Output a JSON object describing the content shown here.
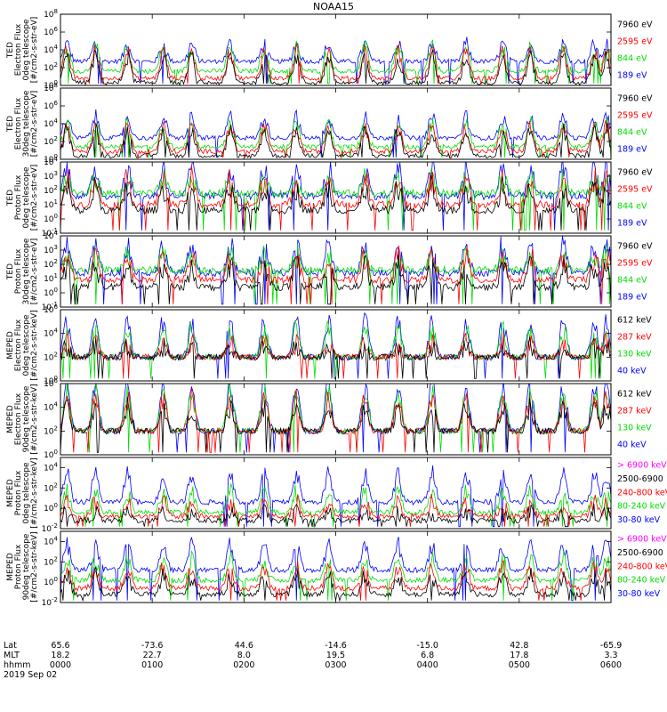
{
  "chart_data": {
    "type": "line",
    "title": "NOAA15",
    "colors": {
      "blue": "#0000ff",
      "red": "#ff0000",
      "green": "#00dd00",
      "black": "#000000",
      "magenta": "#ff00ff"
    },
    "panels": [
      {
        "ylabel": [
          "TED",
          "Electron Flux",
          "0deg telescope",
          "[#/cm2-s-str-eV]"
        ],
        "ytick_exp": [
          0,
          2,
          4,
          6,
          8
        ],
        "ylim": [
          0,
          8
        ],
        "legend": [
          {
            "text": "7960 eV",
            "color": "black"
          },
          {
            "text": "2595 eV",
            "color": "red"
          },
          {
            "text": "844 eV",
            "color": "green"
          },
          {
            "text": "189 eV",
            "color": "blue"
          }
        ],
        "series": [
          {
            "color": "blue",
            "base": 2.7,
            "peak": 4.6
          },
          {
            "color": "green",
            "base": 1.6,
            "peak": 4.2
          },
          {
            "color": "red",
            "base": 0.8,
            "peak": 3.8
          },
          {
            "color": "black",
            "base": 0.3,
            "peak": 3.2
          }
        ]
      },
      {
        "ylabel": [
          "TED",
          "Electron Flux",
          "30deg telescope",
          "[#/cm2-s-str-eV]"
        ],
        "ytick_exp": [
          0,
          2,
          4,
          6,
          8
        ],
        "ylim": [
          0,
          8
        ],
        "legend": [
          {
            "text": "7960 eV",
            "color": "black"
          },
          {
            "text": "2595 eV",
            "color": "red"
          },
          {
            "text": "844 eV",
            "color": "green"
          },
          {
            "text": "189 eV",
            "color": "blue"
          }
        ],
        "series": [
          {
            "color": "blue",
            "base": 2.4,
            "peak": 4.7
          },
          {
            "color": "green",
            "base": 1.4,
            "peak": 4.0
          },
          {
            "color": "red",
            "base": 0.9,
            "peak": 3.6
          },
          {
            "color": "black",
            "base": 0.4,
            "peak": 3.3
          }
        ]
      },
      {
        "ylabel": [
          "TED",
          "Proton Flux",
          "0deg telescope",
          "[#/cm2-s-str-eV]"
        ],
        "ytick_exp": [
          -1,
          0,
          1,
          2,
          3,
          4
        ],
        "ylim": [
          -1,
          4
        ],
        "legend": [
          {
            "text": "7960 eV",
            "color": "black"
          },
          {
            "text": "2595 eV",
            "color": "red"
          },
          {
            "text": "844 eV",
            "color": "green"
          },
          {
            "text": "189 eV",
            "color": "blue"
          }
        ],
        "series": [
          {
            "color": "blue",
            "base": 1.6,
            "peak": 3.6
          },
          {
            "color": "green",
            "base": 1.8,
            "peak": 2.8
          },
          {
            "color": "red",
            "base": 1.0,
            "peak": 2.8
          },
          {
            "color": "black",
            "base": 0.6,
            "peak": 2.2
          }
        ]
      },
      {
        "ylabel": [
          "TED",
          "Proton Flux",
          "30deg telescope",
          "[#/cm2-s-str-eV]"
        ],
        "ytick_exp": [
          -1,
          0,
          1,
          2,
          3,
          4
        ],
        "ylim": [
          -1,
          4
        ],
        "legend": [
          {
            "text": "7960 eV",
            "color": "black"
          },
          {
            "text": "2595 eV",
            "color": "red"
          },
          {
            "text": "844 eV",
            "color": "green"
          },
          {
            "text": "189 eV",
            "color": "blue"
          }
        ],
        "series": [
          {
            "color": "blue",
            "base": 1.4,
            "peak": 3.4
          },
          {
            "color": "green",
            "base": 1.6,
            "peak": 2.6
          },
          {
            "color": "red",
            "base": 0.9,
            "peak": 2.6
          },
          {
            "color": "black",
            "base": 0.4,
            "peak": 1.9
          }
        ]
      },
      {
        "ylabel": [
          "MEPED",
          "Electron Flux",
          "0deg telescope",
          "[#/cm2-s-str-keV]"
        ],
        "ytick_exp": [
          0,
          2,
          4,
          6
        ],
        "ylim": [
          0,
          6
        ],
        "legend": [
          {
            "text": "612 keV",
            "color": "black"
          },
          {
            "text": "287 keV",
            "color": "red"
          },
          {
            "text": "130 keV",
            "color": "green"
          },
          {
            "text": "40 keV",
            "color": "blue"
          }
        ],
        "series": [
          {
            "color": "blue",
            "base": 2.0,
            "peak": 5.0
          },
          {
            "color": "green",
            "base": 2.0,
            "peak": 4.3
          },
          {
            "color": "red",
            "base": 2.0,
            "peak": 3.2
          },
          {
            "color": "black",
            "base": 2.0,
            "peak": 2.8
          }
        ]
      },
      {
        "ylabel": [
          "MEPED",
          "Electron Flux",
          "90deg telescope",
          "[#/cm2-s-str-keV]"
        ],
        "ytick_exp": [
          0,
          2,
          4,
          6
        ],
        "ylim": [
          0,
          6
        ],
        "legend": [
          {
            "text": "612 keV",
            "color": "black"
          },
          {
            "text": "287 keV",
            "color": "red"
          },
          {
            "text": "130 keV",
            "color": "green"
          },
          {
            "text": "40 keV",
            "color": "blue"
          }
        ],
        "series": [
          {
            "color": "blue",
            "base": 2.0,
            "peak": 5.8
          },
          {
            "color": "green",
            "base": 2.0,
            "peak": 5.2
          },
          {
            "color": "red",
            "base": 2.0,
            "peak": 4.6
          },
          {
            "color": "black",
            "base": 2.0,
            "peak": 4.0
          }
        ]
      },
      {
        "ylabel": [
          "MEPED",
          "Proton Flux",
          "0deg telescope",
          "[#/cm2-s-str-keV]"
        ],
        "ytick_exp": [
          -2,
          0,
          2,
          4
        ],
        "ylim": [
          -2,
          5
        ],
        "legend": [
          {
            "text": "> 6900 keV",
            "color": "magenta"
          },
          {
            "text": "2500-6900",
            "color": "black"
          },
          {
            "text": "240-800 keV",
            "color": "red"
          },
          {
            "text": "80-240 keV",
            "color": "green"
          },
          {
            "text": "30-80 keV",
            "color": "blue"
          }
        ],
        "series": [
          {
            "color": "blue",
            "base": 0.6,
            "peak": 3.4
          },
          {
            "color": "green",
            "base": -0.4,
            "peak": 1.6
          },
          {
            "color": "red",
            "base": -0.8,
            "peak": 0.6
          },
          {
            "color": "black",
            "base": -1.2,
            "peak": -0.4
          }
        ]
      },
      {
        "ylabel": [
          "MEPED",
          "Proton Flux",
          "90deg telescope",
          "[#/cm2-s-str-keV]"
        ],
        "ytick_exp": [
          -2,
          0,
          2,
          4
        ],
        "ylim": [
          -2,
          5
        ],
        "legend": [
          {
            "text": "> 6900 keV",
            "color": "magenta"
          },
          {
            "text": "2500-6900",
            "color": "black"
          },
          {
            "text": "240-800 keV",
            "color": "red"
          },
          {
            "text": "80-240 keV",
            "color": "green"
          },
          {
            "text": "30-80 keV",
            "color": "blue"
          }
        ],
        "series": [
          {
            "color": "blue",
            "base": 1.2,
            "peak": 3.6
          },
          {
            "color": "green",
            "base": 0.2,
            "peak": 2.2
          },
          {
            "color": "red",
            "base": -0.6,
            "peak": 1.4
          },
          {
            "color": "black",
            "base": -1.2,
            "peak": 0.6
          }
        ]
      }
    ],
    "pass_peaks_hours": [
      0.07,
      0.38,
      0.73,
      1.12,
      1.43,
      1.85,
      2.22,
      2.57,
      2.92,
      3.32,
      3.68,
      4.05,
      4.42,
      4.82,
      5.12,
      5.48,
      5.82,
      5.95
    ],
    "x_axis": {
      "xlim_hours": [
        0,
        6
      ],
      "row_labels": [
        "Lat",
        "MLT",
        "hhmm"
      ],
      "columns": [
        {
          "hours": 0,
          "lat": "65.6",
          "mlt": "18.2",
          "hhmm": "0000"
        },
        {
          "hours": 1,
          "lat": "-73.6",
          "mlt": "22.7",
          "hhmm": "0100"
        },
        {
          "hours": 2,
          "lat": "44.6",
          "mlt": "8.0",
          "hhmm": "0200"
        },
        {
          "hours": 3,
          "lat": "-14.6",
          "mlt": "19.5",
          "hhmm": "0300"
        },
        {
          "hours": 4,
          "lat": "-15.0",
          "mlt": "6.8",
          "hhmm": "0400"
        },
        {
          "hours": 5,
          "lat": "42.8",
          "mlt": "17.8",
          "hhmm": "0500"
        },
        {
          "hours": 6,
          "lat": "-65.9",
          "mlt": "3.3",
          "hhmm": "0600"
        }
      ],
      "date": "2019 Sep 02"
    }
  }
}
